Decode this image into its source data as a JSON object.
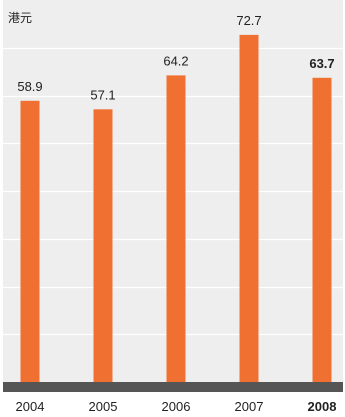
{
  "chart_data": {
    "type": "bar",
    "unit_label": "港元",
    "categories": [
      "2004",
      "2005",
      "2006",
      "2007",
      "2008"
    ],
    "values": [
      58.9,
      57.1,
      64.2,
      72.7,
      63.7
    ],
    "value_labels": [
      "58.9",
      "57.1",
      "64.2",
      "72.7",
      "63.7"
    ],
    "highlight_index": 4,
    "ylim": [
      0,
      80
    ],
    "grid": true,
    "colors": {
      "panel": "#eeeeee",
      "bar": "#f07031",
      "grid": "#ffffff",
      "baseline": "#555555",
      "text": "#222222"
    }
  }
}
